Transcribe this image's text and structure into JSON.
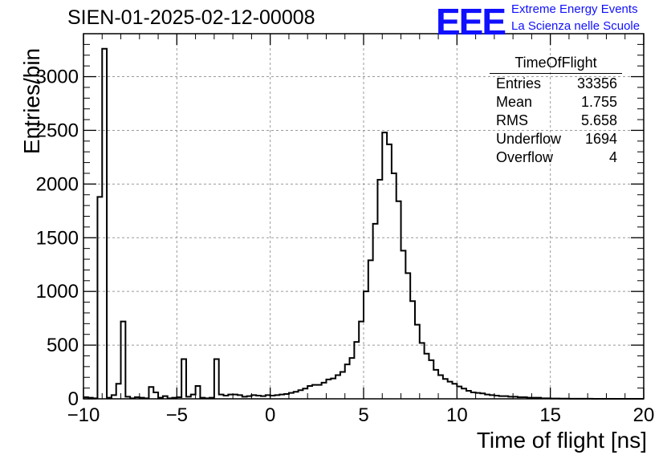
{
  "header": {
    "run_title": "SIEN-01-2025-02-12-00008",
    "logo_text": "EEE",
    "tagline1": "Extreme Energy Events",
    "tagline2": "La Scienza nelle Scuole"
  },
  "stats": {
    "title": "TimeOfFlight",
    "rows": [
      {
        "label": "Entries",
        "value": "33356"
      },
      {
        "label": "Mean",
        "value": "1.755"
      },
      {
        "label": "RMS",
        "value": "5.658"
      },
      {
        "label": "Underflow",
        "value": "1694"
      },
      {
        "label": "Overflow",
        "value": "4"
      }
    ]
  },
  "chart_data": {
    "type": "histogram",
    "xlabel": "Time of flight [ns]",
    "ylabel": "Entries/bin",
    "xlim": [
      -10,
      20
    ],
    "ylim": [
      0,
      3400
    ],
    "bin_width": 0.25,
    "grid": true,
    "x_ticks": [
      -10,
      -5,
      0,
      5,
      10,
      15,
      20
    ],
    "y_ticks": [
      0,
      500,
      1000,
      1500,
      2000,
      2500,
      3000
    ],
    "line_color": "#000000",
    "grid_color": "#999999",
    "values": [
      15,
      10,
      5,
      1880,
      3260,
      10,
      35,
      140,
      720,
      20,
      5,
      15,
      10,
      5,
      110,
      60,
      10,
      25,
      5,
      10,
      15,
      370,
      20,
      40,
      120,
      10,
      5,
      10,
      370,
      40,
      30,
      40,
      40,
      35,
      20,
      25,
      35,
      30,
      25,
      35,
      30,
      35,
      40,
      45,
      55,
      65,
      80,
      95,
      120,
      130,
      130,
      150,
      180,
      190,
      220,
      250,
      320,
      380,
      530,
      720,
      1000,
      1290,
      1630,
      2040,
      2480,
      2370,
      2100,
      1840,
      1380,
      1170,
      910,
      690,
      520,
      420,
      360,
      270,
      220,
      185,
      160,
      140,
      115,
      95,
      75,
      60,
      55,
      50,
      40,
      35,
      30,
      25,
      25,
      20,
      20,
      15,
      15,
      10,
      10,
      10,
      5,
      5,
      3,
      3,
      2,
      2,
      1,
      1,
      1,
      1,
      1,
      0,
      0,
      0,
      0,
      0,
      0,
      0,
      0,
      0,
      0,
      0
    ]
  }
}
